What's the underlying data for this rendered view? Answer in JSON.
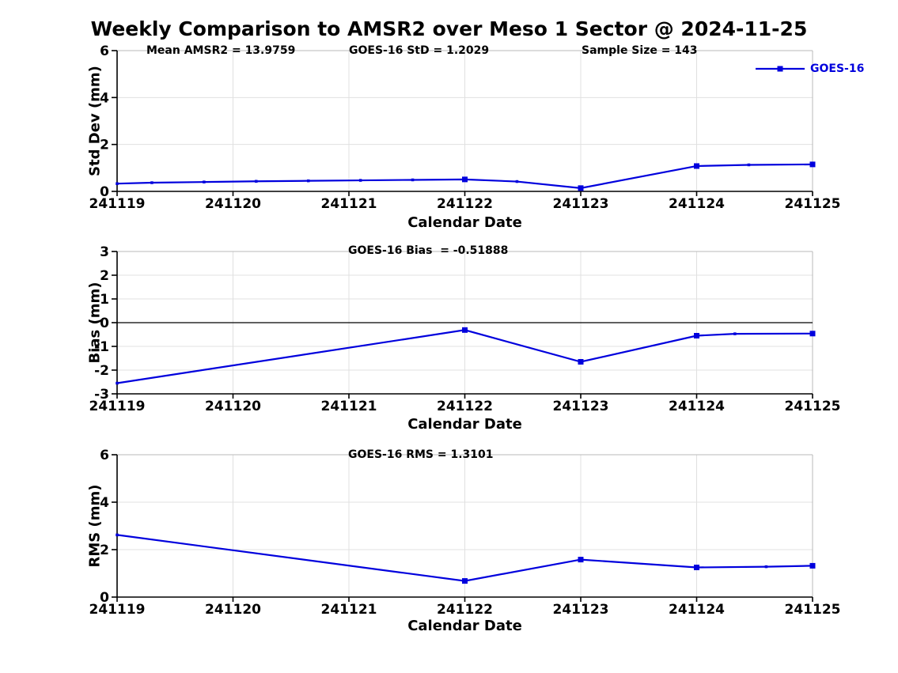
{
  "figure": {
    "title": "Weekly Comparison to AMSR2 over Meso 1 Sector @ 2024-11-25",
    "colors": {
      "line": "#0000dd",
      "grid": "#e0e0e0",
      "box": "#b8b8b8",
      "axis": "#000000",
      "text": "#000000",
      "background": "#ffffff"
    }
  },
  "chart_data": [
    {
      "name": "std-dev",
      "type": "line",
      "title": "",
      "ylabel": "Std Dev (mm)",
      "xlabel": "Calendar Date",
      "xlim": [
        0,
        6
      ],
      "ylim": [
        0,
        6
      ],
      "x_ticks": [
        0,
        1,
        2,
        3,
        4,
        5,
        6
      ],
      "x_tick_labels": [
        "241119",
        "241120",
        "241121",
        "241122",
        "241123",
        "241124",
        "241125"
      ],
      "y_ticks": [
        0,
        2,
        4,
        6
      ],
      "grid": true,
      "zero_line": false,
      "legend": {
        "label": "GOES-16",
        "position": "northeast"
      },
      "annotations": [
        {
          "text": "Mean AMSR2 = 13.9759"
        },
        {
          "text": "GOES-16 StD = 1.2029"
        },
        {
          "text": "Sample Size = 143"
        }
      ],
      "series": [
        {
          "name": "GOES-16",
          "x": [
            0,
            0.3,
            0.75,
            1.2,
            1.65,
            2.1,
            2.55,
            3,
            3.45,
            4,
            5,
            5.45,
            6
          ],
          "y": [
            0.33,
            0.37,
            0.4,
            0.43,
            0.45,
            0.47,
            0.49,
            0.51,
            0.42,
            0.14,
            1.08,
            1.13,
            1.15
          ],
          "marker_x": [
            3,
            4,
            5,
            6
          ]
        }
      ]
    },
    {
      "name": "bias",
      "type": "line",
      "title": "",
      "ylabel": "Bias (mm)",
      "xlabel": "Calendar Date",
      "xlim": [
        0,
        6
      ],
      "ylim": [
        -3,
        3
      ],
      "x_ticks": [
        0,
        1,
        2,
        3,
        4,
        5,
        6
      ],
      "x_tick_labels": [
        "241119",
        "241120",
        "241121",
        "241122",
        "241123",
        "241124",
        "241125"
      ],
      "y_ticks": [
        -3,
        -2,
        -1,
        0,
        1,
        2,
        3
      ],
      "grid": true,
      "zero_line": true,
      "annotations": [
        {
          "text": "GOES-16 Bias  = -0.51888"
        }
      ],
      "series": [
        {
          "name": "GOES-16",
          "x": [
            0,
            3,
            4,
            5,
            5.33,
            6
          ],
          "y": [
            -2.55,
            -0.31,
            -1.65,
            -0.55,
            -0.47,
            -0.46
          ],
          "marker_x": [
            3,
            4,
            5,
            6
          ]
        }
      ]
    },
    {
      "name": "rms",
      "type": "line",
      "title": "",
      "ylabel": "RMS (mm)",
      "xlabel": "Calendar Date",
      "xlim": [
        0,
        6
      ],
      "ylim": [
        0,
        6
      ],
      "x_ticks": [
        0,
        1,
        2,
        3,
        4,
        5,
        6
      ],
      "x_tick_labels": [
        "241119",
        "241120",
        "241121",
        "241122",
        "241123",
        "241124",
        "241125"
      ],
      "y_ticks": [
        0,
        2,
        4,
        6
      ],
      "grid": true,
      "zero_line": false,
      "annotations": [
        {
          "text": "GOES-16 RMS = 1.3101"
        }
      ],
      "series": [
        {
          "name": "GOES-16",
          "x": [
            0,
            3,
            4,
            5,
            5.6,
            6
          ],
          "y": [
            2.62,
            0.68,
            1.58,
            1.25,
            1.28,
            1.32
          ],
          "marker_x": [
            3,
            4,
            5,
            6
          ]
        }
      ]
    }
  ]
}
